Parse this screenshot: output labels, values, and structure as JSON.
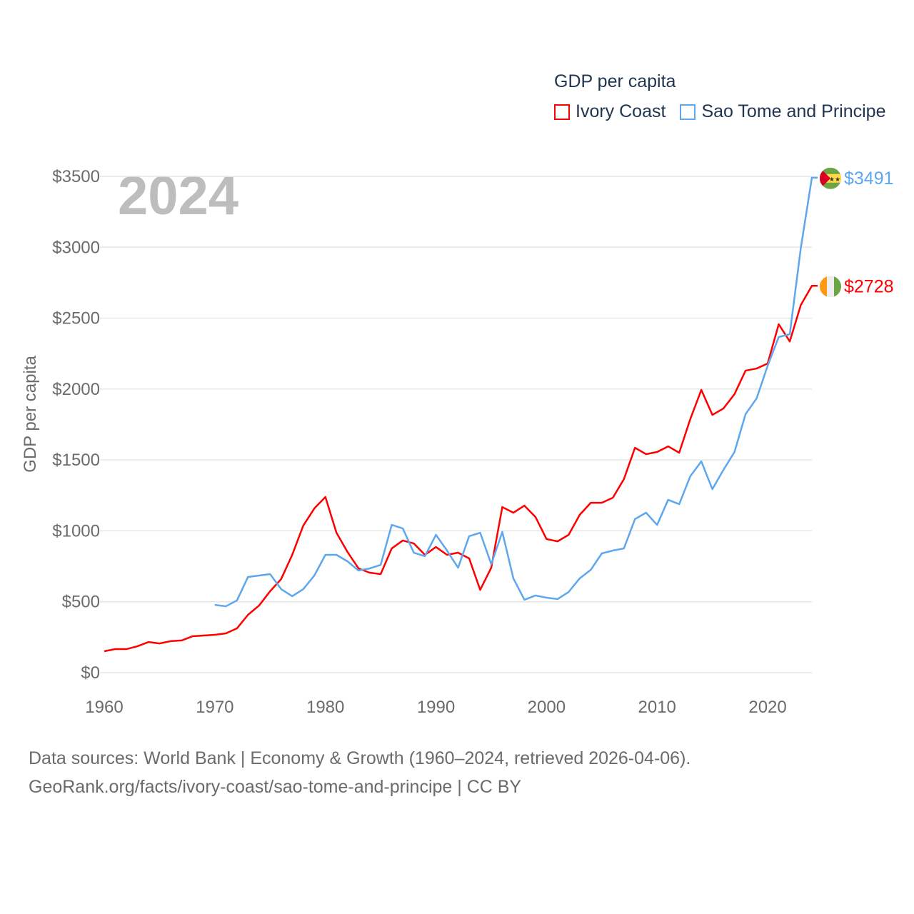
{
  "chart_data": {
    "type": "line",
    "title": "GDP per capita",
    "year_label": "2024",
    "xlabel": "",
    "ylabel": "GDP per capita",
    "xlim": [
      1960,
      2024
    ],
    "ylim": [
      0,
      3500
    ],
    "x_ticks": [
      "1960",
      "1970",
      "1980",
      "1990",
      "2000",
      "2010",
      "2020"
    ],
    "x_tick_values": [
      1960,
      1970,
      1980,
      1990,
      2000,
      2010,
      2020
    ],
    "y_ticks": [
      "$0",
      "$500",
      "$1000",
      "$1500",
      "$2000",
      "$2500",
      "$3000",
      "$3500"
    ],
    "y_tick_values": [
      0,
      500,
      1000,
      1500,
      2000,
      2500,
      3000,
      3500
    ],
    "grid": true,
    "legend_position": "top-right",
    "series": [
      {
        "name": "Ivory Coast",
        "color": "#ff0000",
        "end_label": "$2728",
        "start_year": 1960,
        "values": [
          151,
          166,
          166,
          186,
          216,
          206,
          222,
          227,
          257,
          262,
          267,
          277,
          312,
          408,
          473,
          574,
          660,
          831,
          1037,
          1158,
          1239,
          987,
          851,
          735,
          705,
          695,
          876,
          932,
          911,
          831,
          886,
          831,
          846,
          806,
          584,
          740,
          1168,
          1128,
          1178,
          1098,
          942,
          926,
          972,
          1113,
          1198,
          1198,
          1234,
          1365,
          1586,
          1541,
          1556,
          1596,
          1551,
          1788,
          1994,
          1818,
          1863,
          1964,
          2130,
          2145,
          2180,
          2457,
          2336,
          2593,
          2728
        ]
      },
      {
        "name": "Sao Tome and Principe",
        "color": "#5ea7ee",
        "end_label": "$3491",
        "start_year": 1970,
        "values": [
          478,
          468,
          509,
          675,
          685,
          695,
          589,
          539,
          589,
          685,
          831,
          831,
          785,
          720,
          735,
          760,
          1042,
          1017,
          846,
          821,
          972,
          861,
          740,
          962,
          987,
          765,
          992,
          665,
          514,
          544,
          529,
          519,
          569,
          665,
          725,
          841,
          861,
          876,
          1083,
          1128,
          1042,
          1219,
          1188,
          1385,
          1490,
          1294,
          1430,
          1556,
          1823,
          1934,
          2165,
          2367,
          2387,
          2996,
          3491
        ]
      }
    ]
  },
  "source": {
    "line1": "Data sources: World Bank | Economy & Growth (1960–2024, retrieved 2026-04-06).",
    "line2": "GeoRank.org/facts/ivory-coast/sao-tome-and-principe | CC BY"
  }
}
